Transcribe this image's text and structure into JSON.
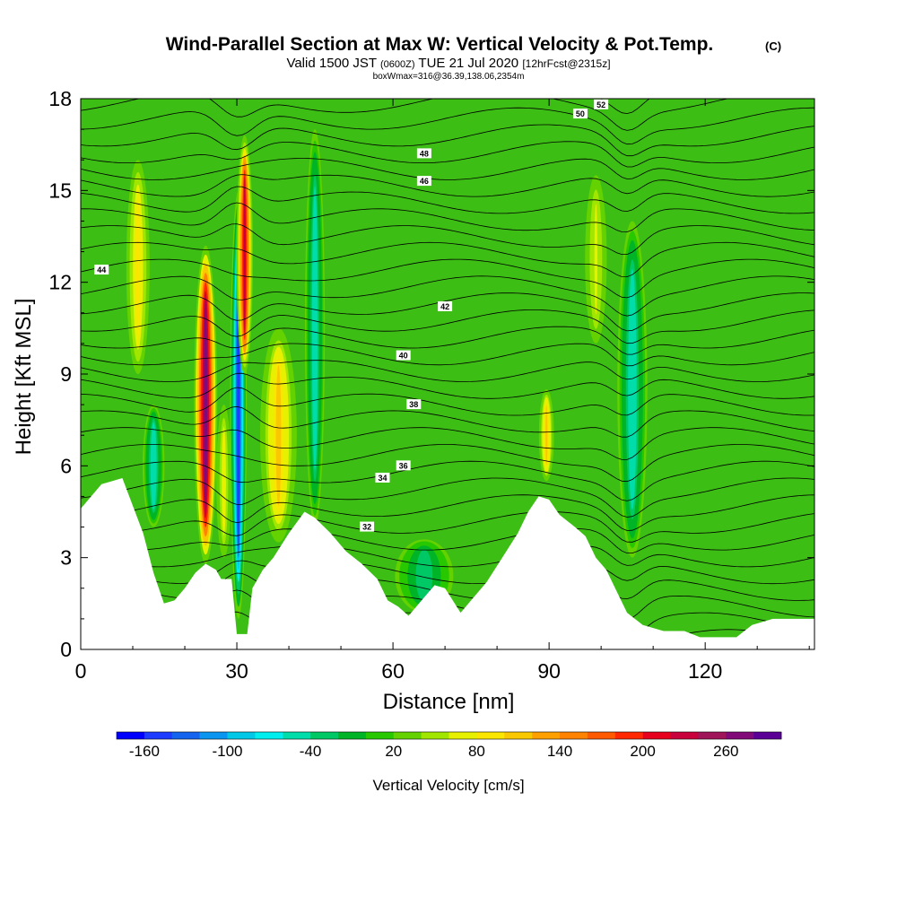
{
  "chart_data": {
    "type": "heatmap",
    "title": "Wind-Parallel Section at Max W: Vertical Velocity & Pot.Temp.",
    "title_mark": "(C)",
    "subtitle": {
      "valid": "Valid 1500 JST",
      "utc": "(0600Z)",
      "date": "TUE 21 Jul 2020",
      "fcst": "[12hrFcst@2315z]"
    },
    "box_note": "boxWmax=316@36.39,138.06,2354m",
    "xlabel": "Distance [nm]",
    "ylabel": "Height [Kft MSL]",
    "xlim": [
      0,
      141
    ],
    "ylim": [
      0,
      18
    ],
    "x_ticks": [
      "0",
      "30",
      "60",
      "90",
      "120"
    ],
    "y_ticks": [
      "0",
      "3",
      "6",
      "9",
      "12",
      "15",
      "18"
    ],
    "colorbar": {
      "label": "Vertical Velocity [cm/s]",
      "tick_labels": [
        "-160",
        "-100",
        "-40",
        "20",
        "80",
        "140",
        "200",
        "260"
      ],
      "colors": [
        "#0000ff",
        "#1e3cff",
        "#1464f0",
        "#0a96f0",
        "#00c8e6",
        "#00eeee",
        "#00dcaa",
        "#00c864",
        "#00b428",
        "#28c800",
        "#64d200",
        "#a0e600",
        "#e6f000",
        "#fae600",
        "#fac800",
        "#ffa000",
        "#ff8200",
        "#ff5a00",
        "#ff2800",
        "#e6001e",
        "#c8003c",
        "#a0145a",
        "#820a78",
        "#5a0096"
      ]
    },
    "theta_contour_labels": [
      "32",
      "34",
      "36",
      "38",
      "40",
      "42",
      "44",
      "46",
      "48",
      "50",
      "52"
    ],
    "terrain_kft": [
      [
        0,
        4.6
      ],
      [
        2,
        5.0
      ],
      [
        4,
        5.4
      ],
      [
        8,
        5.6
      ],
      [
        10,
        4.7
      ],
      [
        12,
        3.8
      ],
      [
        14,
        2.5
      ],
      [
        16,
        1.5
      ],
      [
        18,
        1.6
      ],
      [
        20,
        2.0
      ],
      [
        22,
        2.5
      ],
      [
        24,
        2.8
      ],
      [
        26,
        2.6
      ],
      [
        27,
        2.3
      ],
      [
        29,
        2.3
      ],
      [
        30,
        0.5
      ],
      [
        32,
        0.5
      ],
      [
        33,
        2.0
      ],
      [
        35,
        2.6
      ],
      [
        37,
        3.0
      ],
      [
        40,
        3.8
      ],
      [
        43,
        4.5
      ],
      [
        45,
        4.3
      ],
      [
        48,
        3.8
      ],
      [
        51,
        3.2
      ],
      [
        54,
        2.8
      ],
      [
        57,
        2.3
      ],
      [
        59,
        1.6
      ],
      [
        61,
        1.4
      ],
      [
        63,
        1.1
      ],
      [
        65,
        1.5
      ],
      [
        68,
        2.1
      ],
      [
        70,
        2.0
      ],
      [
        73,
        1.2
      ],
      [
        75,
        1.6
      ],
      [
        78,
        2.2
      ],
      [
        81,
        3.0
      ],
      [
        84,
        3.8
      ],
      [
        86,
        4.5
      ],
      [
        88,
        5.0
      ],
      [
        90,
        4.9
      ],
      [
        92,
        4.4
      ],
      [
        95,
        4.0
      ],
      [
        97,
        3.7
      ],
      [
        99,
        3.0
      ],
      [
        101,
        2.6
      ],
      [
        103,
        1.9
      ],
      [
        105,
        1.2
      ],
      [
        108,
        0.8
      ],
      [
        112,
        0.6
      ],
      [
        116,
        0.6
      ],
      [
        119,
        0.4
      ],
      [
        126,
        0.4
      ],
      [
        129,
        0.8
      ],
      [
        133,
        1.0
      ],
      [
        137,
        1.0
      ],
      [
        141,
        1.0
      ]
    ],
    "updraft_bands": [
      {
        "x": 24,
        "w": 1.4,
        "y0": 2.8,
        "y1": 13.2,
        "peak": 260
      },
      {
        "x": 31.5,
        "w": 1.0,
        "y0": 9.0,
        "y1": 16.8,
        "peak": 220
      },
      {
        "x": 38,
        "w": 2.2,
        "y0": 3.5,
        "y1": 10.5,
        "peak": 100
      },
      {
        "x": 11,
        "w": 1.4,
        "y0": 9.0,
        "y1": 16.0,
        "peak": 80
      },
      {
        "x": 89.5,
        "w": 0.9,
        "y0": 5.5,
        "y1": 8.5,
        "peak": 100
      },
      {
        "x": 99,
        "w": 1.3,
        "y0": 10.0,
        "y1": 15.5,
        "peak": 60
      },
      {
        "x": 27.5,
        "w": 0.9,
        "y0": 3.0,
        "y1": 8.0,
        "peak": 70
      }
    ],
    "downdraft_bands": [
      {
        "x": 30.3,
        "w": 1.0,
        "y0": 1.0,
        "y1": 15.0,
        "peak": -160
      },
      {
        "x": 14,
        "w": 1.3,
        "y0": 4.0,
        "y1": 8.0,
        "peak": -60
      },
      {
        "x": 45,
        "w": 1.2,
        "y0": 4.0,
        "y1": 17.0,
        "peak": -60
      },
      {
        "x": 106,
        "w": 1.8,
        "y0": 3.0,
        "y1": 14.0,
        "peak": -60
      },
      {
        "x": 66,
        "w": 3.5,
        "y0": 1.2,
        "y1": 3.6,
        "peak": -40
      }
    ]
  }
}
